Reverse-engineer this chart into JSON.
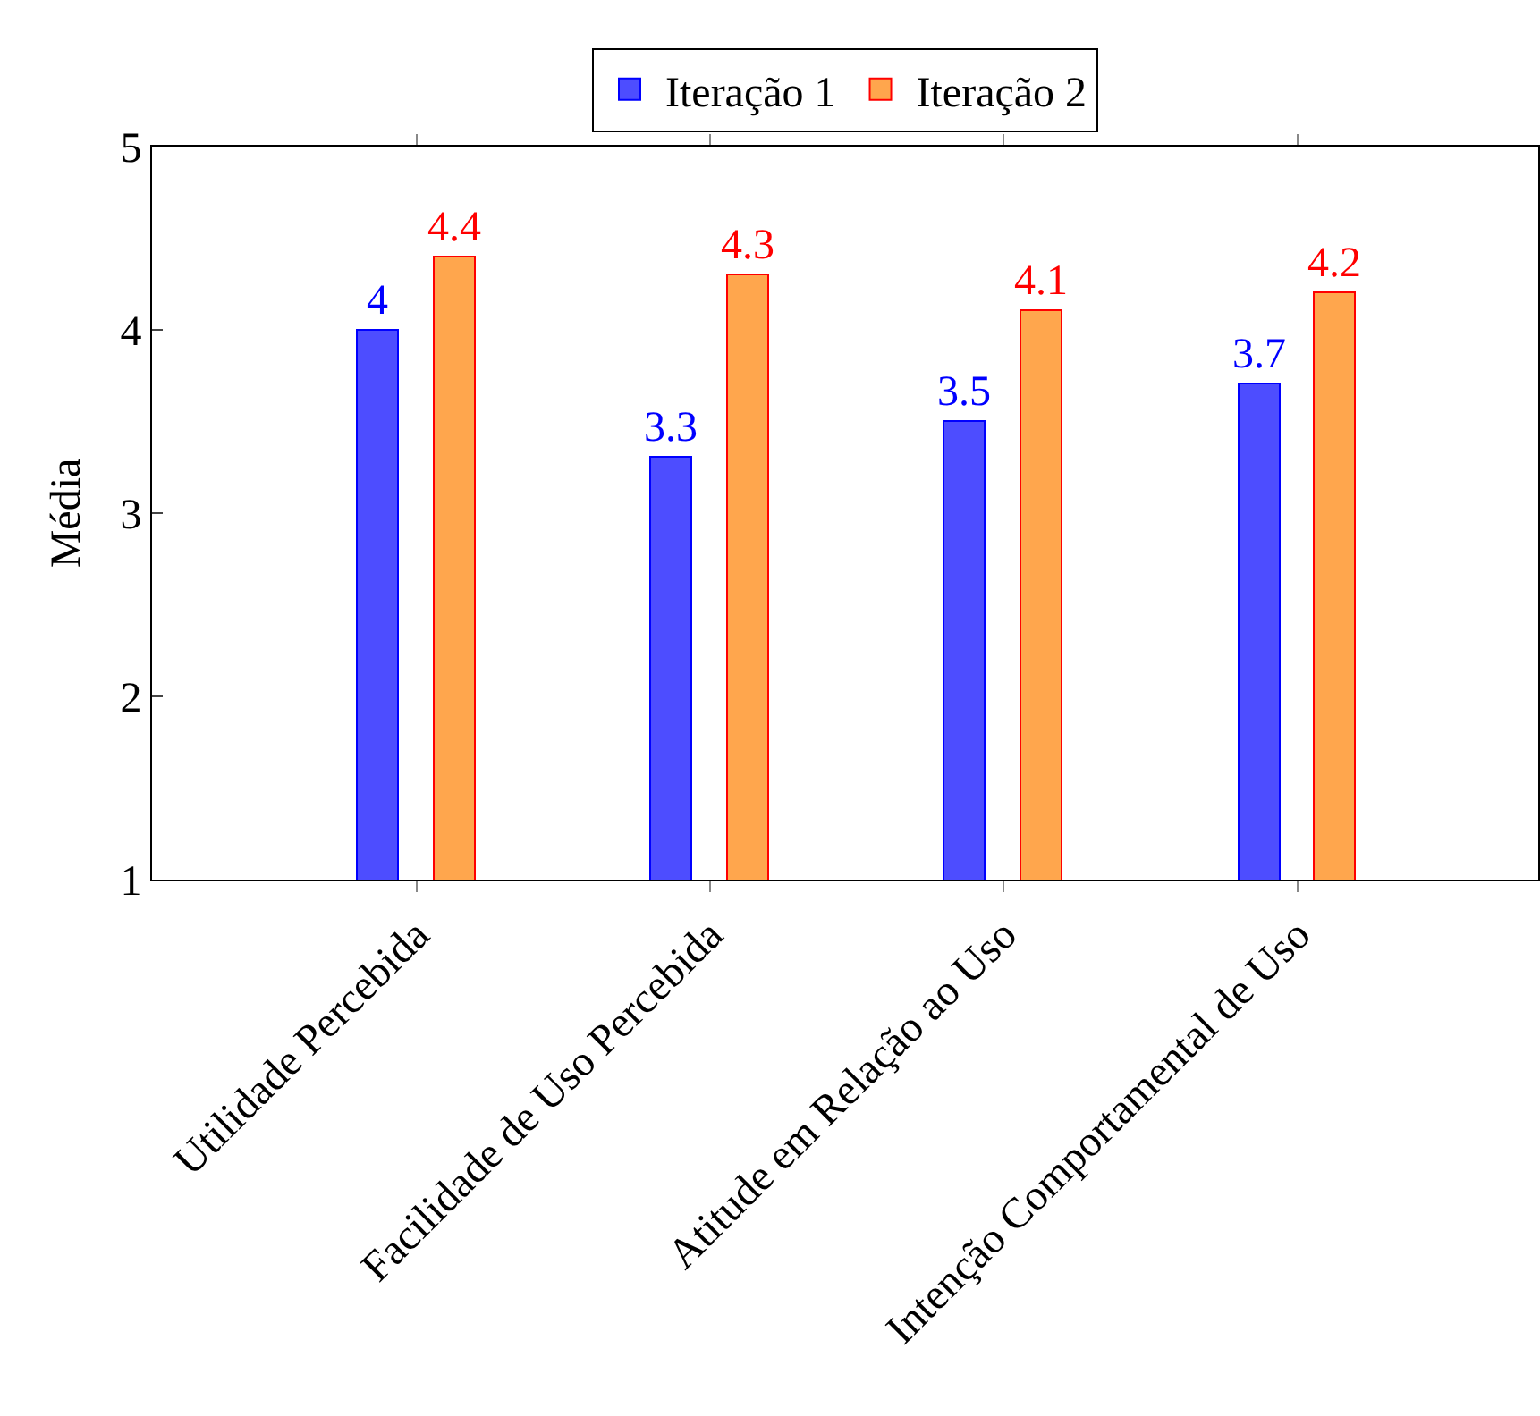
{
  "chart_data": {
    "type": "bar",
    "ylabel": "Média",
    "categories": [
      "Utilidade Percebida",
      "Facilidade de Uso Percebida",
      "Atitude em Relação ao Uso",
      "Intenção Comportamental de Uso"
    ],
    "series": [
      {
        "name": "Iteração 1",
        "color": "#4d4dff",
        "values": [
          4,
          3.3,
          3.5,
          3.7
        ]
      },
      {
        "name": "Iteração 2",
        "color": "#ffa64d",
        "values": [
          4.4,
          4.3,
          4.1,
          4.2
        ]
      }
    ],
    "ylim": [
      1,
      5
    ],
    "yticks": [
      1,
      2,
      3,
      4,
      5
    ],
    "legend": "top",
    "data_labels": true
  }
}
